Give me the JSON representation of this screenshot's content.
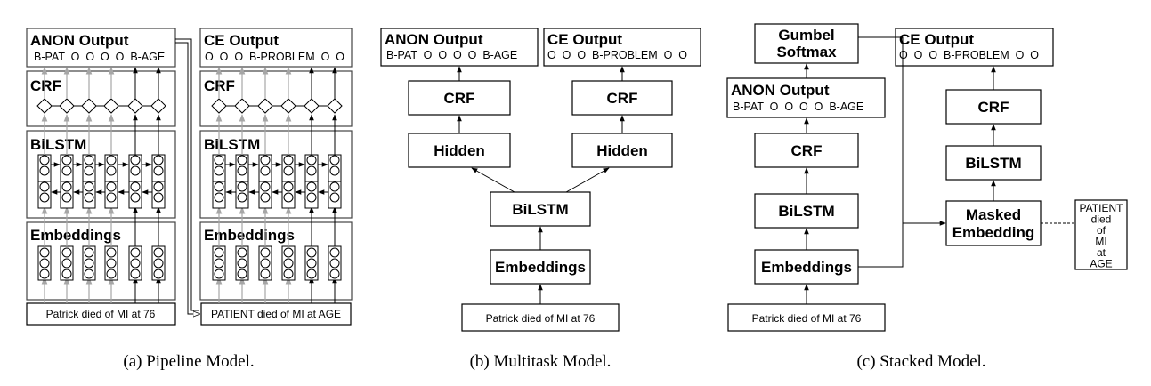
{
  "pipeline": {
    "caption": "(a) Pipeline Model.",
    "anon_title": "ANON Output",
    "anon_labels": "B-PAT  O  O  O  O  B-AGE",
    "ce_title": "CE Output",
    "ce_labels": "O  O  O  B-PROBLEM  O  O",
    "crf_label": "CRF",
    "bilstm_label": "BiLSTM",
    "embeddings_label": "Embeddings",
    "input_text": "Patrick died of MI at 76",
    "masked_input_text": "PATIENT died of MI at AGE"
  },
  "multitask": {
    "caption": "(b) Multitask Model.",
    "anon_title": "ANON Output",
    "anon_labels": "B-PAT  O  O  O  O  B-AGE",
    "ce_title": "CE Output",
    "ce_labels": "O  O  O  B-PROBLEM  O  O",
    "crf_label": "CRF",
    "hidden_label": "Hidden",
    "bilstm_label": "BiLSTM",
    "embeddings_label": "Embeddings",
    "input_text": "Patrick died of MI at 76"
  },
  "stacked": {
    "caption": "(c) Stacked Model.",
    "gumbel_line1": "Gumbel",
    "gumbel_line2": "Softmax",
    "anon_title": "ANON Output",
    "anon_labels": "B-PAT  O  O  O  O  B-AGE",
    "crf_label": "CRF",
    "bilstm_label": "BiLSTM",
    "embeddings_label": "Embeddings",
    "input_text": "Patrick died of MI at 76",
    "ce_title": "CE Output",
    "ce_labels": "O  O  O  B-PROBLEM  O  O",
    "masked_line1": "Masked",
    "masked_line2": "Embedding",
    "side_words": [
      "PATIENT",
      "died",
      "of",
      "MI",
      "at",
      "AGE"
    ]
  }
}
